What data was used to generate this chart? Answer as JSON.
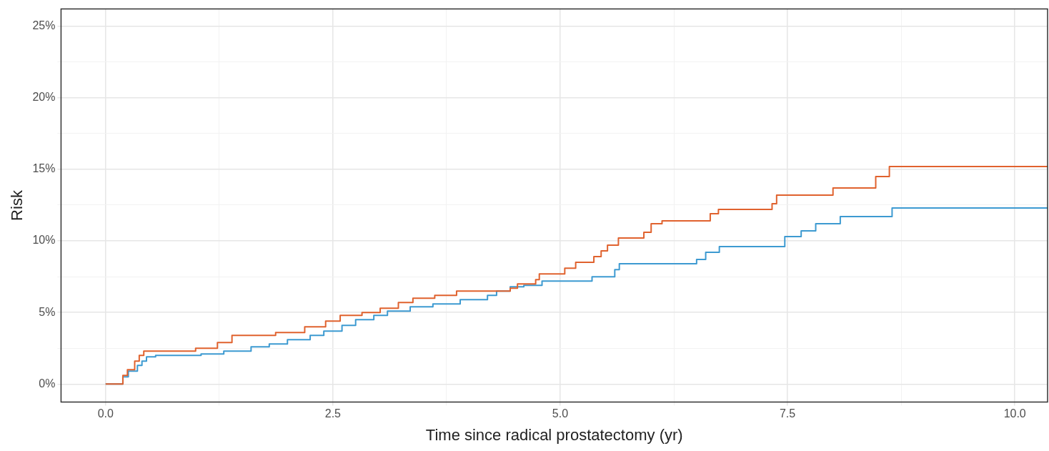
{
  "chart_data": {
    "type": "step",
    "xlabel": "Time since radical prostatectomy (yr)",
    "ylabel": "Risk",
    "xlim": [
      -0.49,
      10.36
    ],
    "ylim": [
      -1.25,
      26.2
    ],
    "xticks": [
      {
        "value": 0,
        "label": "0.0"
      },
      {
        "value": 1.25,
        "label": null
      },
      {
        "value": 2.5,
        "label": "2.5"
      },
      {
        "value": 3.75,
        "label": null
      },
      {
        "value": 5,
        "label": "5.0"
      },
      {
        "value": 6.25,
        "label": null
      },
      {
        "value": 7.5,
        "label": "7.5"
      },
      {
        "value": 8.75,
        "label": null
      },
      {
        "value": 10,
        "label": "10.0"
      }
    ],
    "yticks": [
      {
        "value": 0,
        "label": "0%"
      },
      {
        "value": 2.5,
        "label": null
      },
      {
        "value": 5,
        "label": "5%"
      },
      {
        "value": 7.5,
        "label": null
      },
      {
        "value": 10,
        "label": "10%"
      },
      {
        "value": 12.5,
        "label": null
      },
      {
        "value": 15,
        "label": "15%"
      },
      {
        "value": 17.5,
        "label": null
      },
      {
        "value": 20,
        "label": "20%"
      },
      {
        "value": 22.5,
        "label": null
      },
      {
        "value": 25,
        "label": "25%"
      }
    ],
    "grid": true,
    "marker": "none",
    "line_style": "solid",
    "series": [
      {
        "color": "#e0622e",
        "x": [
          0,
          0.19,
          0.24,
          0.32,
          0.37,
          0.42,
          0.99,
          1.23,
          1.39,
          1.87,
          2.19,
          2.42,
          2.58,
          2.82,
          3.02,
          3.22,
          3.38,
          3.62,
          3.86,
          4.45,
          4.53,
          4.73,
          4.77,
          5.05,
          5.17,
          5.37,
          5.45,
          5.52,
          5.64,
          5.92,
          6.0,
          6.12,
          6.65,
          6.74,
          7.33,
          7.38,
          8.0,
          8.47,
          8.62,
          10.36
        ],
        "values": [
          0,
          0.6,
          1.0,
          1.6,
          2.0,
          2.3,
          2.5,
          2.9,
          3.4,
          3.6,
          4.0,
          4.4,
          4.8,
          5.0,
          5.3,
          5.7,
          6.0,
          6.2,
          6.5,
          6.7,
          7.0,
          7.3,
          7.7,
          8.1,
          8.5,
          8.9,
          9.3,
          9.7,
          10.2,
          10.6,
          11.2,
          11.4,
          11.9,
          12.2,
          12.6,
          13.2,
          13.7,
          14.5,
          15.2,
          15.2
        ]
      },
      {
        "color": "#3d9ad1",
        "x": [
          0,
          0.19,
          0.25,
          0.35,
          0.4,
          0.45,
          0.55,
          1.05,
          1.3,
          1.6,
          1.8,
          2.0,
          2.25,
          2.4,
          2.6,
          2.75,
          2.95,
          3.1,
          3.35,
          3.6,
          3.9,
          4.2,
          4.3,
          4.45,
          4.6,
          4.8,
          5.35,
          5.6,
          5.65,
          6.5,
          6.6,
          6.75,
          7.47,
          7.65,
          7.81,
          8.08,
          8.65,
          10.36
        ],
        "values": [
          0,
          0.5,
          0.9,
          1.3,
          1.6,
          1.9,
          2.0,
          2.1,
          2.3,
          2.6,
          2.8,
          3.1,
          3.4,
          3.7,
          4.1,
          4.5,
          4.8,
          5.1,
          5.4,
          5.6,
          5.9,
          6.2,
          6.5,
          6.8,
          6.9,
          7.2,
          7.5,
          8.0,
          8.4,
          8.7,
          9.2,
          9.6,
          10.3,
          10.7,
          11.2,
          11.7,
          12.3,
          12.3
        ]
      }
    ]
  }
}
